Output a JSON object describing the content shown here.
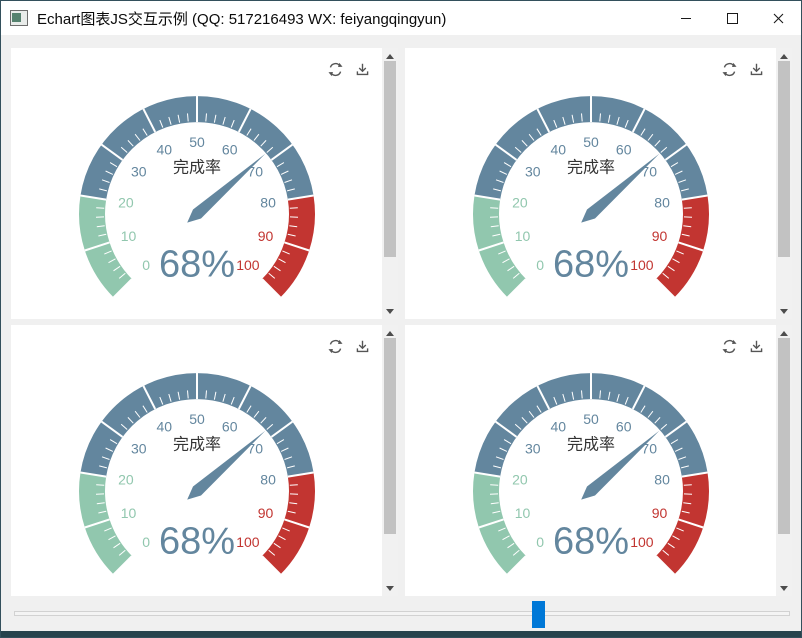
{
  "window": {
    "title": "Echart图表JS交互示例 (QQ: 517216493 WX: feiyangqingyun)"
  },
  "icons": {
    "app": "app-window-icon",
    "minimize": "minimize-icon",
    "maximize": "maximize-icon",
    "close": "close-icon",
    "restore": "refresh-icon",
    "save_image": "download-icon",
    "scroll_up": "triangle-up-icon",
    "scroll_down": "triangle-down-icon"
  },
  "colors": {
    "accent": "#0078d7",
    "segment_green": "#91c7ae",
    "segment_blue": "#63869e",
    "segment_red": "#c23531",
    "scroll_thumb": "#c2c2c2",
    "panel_bg": "#ffffff",
    "content_bg": "#f0f0f0",
    "bottom_strip": "#27434d"
  },
  "chart_data": [
    {
      "type": "gauge",
      "title": "完成率",
      "value": 68,
      "detail": "68%",
      "min": 0,
      "max": 100,
      "start_angle": 225,
      "end_angle": -45,
      "split_number": 10,
      "axis_labels": [
        "0",
        "10",
        "20",
        "30",
        "40",
        "50",
        "60",
        "70",
        "80",
        "90",
        "100"
      ],
      "segments": [
        {
          "upto": 20,
          "color": "#91c7ae"
        },
        {
          "upto": 80,
          "color": "#63869e"
        },
        {
          "upto": 100,
          "color": "#c23531"
        }
      ],
      "title_color": "#333333",
      "detail_color": "#63869e",
      "needle_color": "#63869e",
      "tick_color": "#ffffff"
    },
    {
      "type": "gauge",
      "title": "完成率",
      "value": 68,
      "detail": "68%",
      "min": 0,
      "max": 100,
      "start_angle": 225,
      "end_angle": -45,
      "split_number": 10,
      "axis_labels": [
        "0",
        "10",
        "20",
        "30",
        "40",
        "50",
        "60",
        "70",
        "80",
        "90",
        "100"
      ],
      "segments": [
        {
          "upto": 20,
          "color": "#91c7ae"
        },
        {
          "upto": 80,
          "color": "#63869e"
        },
        {
          "upto": 100,
          "color": "#c23531"
        }
      ],
      "title_color": "#333333",
      "detail_color": "#63869e",
      "needle_color": "#63869e",
      "tick_color": "#ffffff"
    },
    {
      "type": "gauge",
      "title": "完成率",
      "value": 68,
      "detail": "68%",
      "min": 0,
      "max": 100,
      "start_angle": 225,
      "end_angle": -45,
      "split_number": 10,
      "axis_labels": [
        "0",
        "10",
        "20",
        "30",
        "40",
        "50",
        "60",
        "70",
        "80",
        "90",
        "100"
      ],
      "segments": [
        {
          "upto": 20,
          "color": "#91c7ae"
        },
        {
          "upto": 80,
          "color": "#63869e"
        },
        {
          "upto": 100,
          "color": "#c23531"
        }
      ],
      "title_color": "#333333",
      "detail_color": "#63869e",
      "needle_color": "#63869e",
      "tick_color": "#ffffff"
    },
    {
      "type": "gauge",
      "title": "完成率",
      "value": 68,
      "detail": "68%",
      "min": 0,
      "max": 100,
      "start_angle": 225,
      "end_angle": -45,
      "split_number": 10,
      "axis_labels": [
        "0",
        "10",
        "20",
        "30",
        "40",
        "50",
        "60",
        "70",
        "80",
        "90",
        "100"
      ],
      "segments": [
        {
          "upto": 20,
          "color": "#91c7ae"
        },
        {
          "upto": 80,
          "color": "#63869e"
        },
        {
          "upto": 100,
          "color": "#c23531"
        }
      ],
      "title_color": "#333333",
      "detail_color": "#63869e",
      "needle_color": "#63869e",
      "tick_color": "#ffffff"
    }
  ]
}
